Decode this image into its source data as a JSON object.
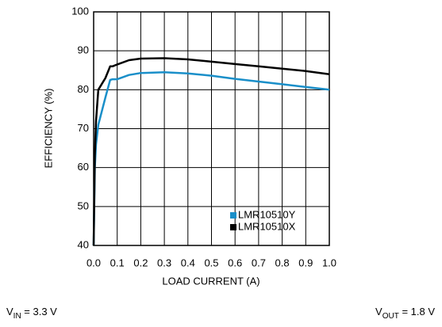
{
  "chart_data": {
    "type": "line",
    "x_label": "LOAD CURRENT (A)",
    "y_label": "EFFICIENCY (%)",
    "x": [
      0,
      0.005,
      0.01,
      0.02,
      0.05,
      0.07,
      0.08,
      0.1,
      0.15,
      0.2,
      0.3,
      0.4,
      0.5,
      0.6,
      0.7,
      0.8,
      0.9,
      1.0
    ],
    "series": [
      {
        "name": "LMR10510Y",
        "color": "#1a8fc9",
        "values": [
          40,
          60,
          66,
          71,
          78,
          82.5,
          82.7,
          82.7,
          83.8,
          84.3,
          84.5,
          84.2,
          83.6,
          82.8,
          82.1,
          81.4,
          80.7,
          80
        ]
      },
      {
        "name": "LMR10510X",
        "color": "#000000",
        "values": [
          40,
          63,
          72,
          80,
          83,
          86,
          86,
          86.5,
          87.6,
          88,
          88.1,
          87.8,
          87.2,
          86.6,
          86,
          85.4,
          84.8,
          84
        ]
      }
    ],
    "xlim": [
      0,
      1.0
    ],
    "ylim": [
      40,
      100
    ],
    "xticks": [
      {
        "value": 0,
        "label": "0.0"
      },
      0.1,
      0.2,
      0.3,
      0.4,
      0.5,
      0.6,
      0.7,
      0.8,
      0.9,
      {
        "value": 1.0,
        "label": "1.0"
      }
    ],
    "yticks": [
      40,
      50,
      60,
      70,
      80,
      90,
      100
    ],
    "grid": true,
    "legend": "lower right",
    "annotations": [
      {
        "text": "V",
        "sub": "IN",
        "rest": " = 3.3 V"
      },
      {
        "text": "V",
        "sub": "OUT",
        "rest": " = 1.8 V"
      }
    ]
  }
}
